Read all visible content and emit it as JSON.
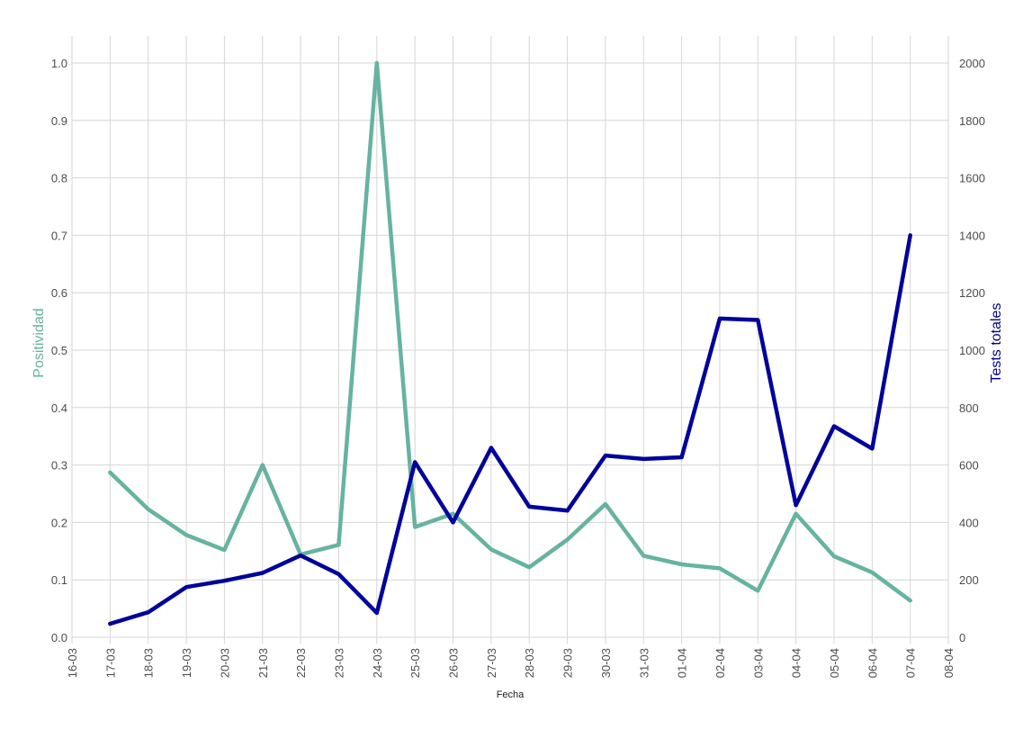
{
  "chart_data": {
    "type": "line",
    "xlabel": "Fecha",
    "y_left_label": "Positividad",
    "y_right_label": "Tests totales",
    "x_ticks": [
      "16-03",
      "17-03",
      "18-03",
      "19-03",
      "20-03",
      "21-03",
      "22-03",
      "23-03",
      "24-03",
      "25-03",
      "26-03",
      "27-03",
      "28-03",
      "29-03",
      "30-03",
      "31-03",
      "01-04",
      "02-04",
      "03-04",
      "04-04",
      "05-04",
      "06-04",
      "07-04",
      "08-04"
    ],
    "y_left_ticks": [
      "0.0",
      "0.1",
      "0.2",
      "0.3",
      "0.4",
      "0.5",
      "0.6",
      "0.7",
      "0.8",
      "0.9",
      "1.0"
    ],
    "y_right_ticks": [
      "0",
      "200",
      "400",
      "600",
      "800",
      "1000",
      "1200",
      "1400",
      "1600",
      "1800",
      "2000"
    ],
    "y_left_lim": [
      0,
      1.0
    ],
    "y_right_lim": [
      0,
      2000
    ],
    "grid": true,
    "colors": {
      "positividad": "#66b3a0",
      "tests": "#00009a",
      "left_axis_title": "#66b3a0",
      "right_axis_title": "#00008b"
    },
    "series": [
      {
        "name": "Positividad",
        "axis": "left",
        "x": [
          "17-03",
          "18-03",
          "19-03",
          "20-03",
          "21-03",
          "22-03",
          "23-03",
          "24-03",
          "25-03",
          "26-03",
          "27-03",
          "28-03",
          "29-03",
          "30-03",
          "31-03",
          "01-04",
          "02-04",
          "03-04",
          "04-04",
          "05-04",
          "06-04",
          "07-04"
        ],
        "values": [
          0.287,
          0.223,
          0.178,
          0.152,
          0.3,
          0.144,
          0.161,
          1.0,
          0.192,
          0.215,
          0.153,
          0.122,
          0.17,
          0.232,
          0.142,
          0.127,
          0.12,
          0.081,
          0.215,
          0.141,
          0.113,
          0.064
        ]
      },
      {
        "name": "Tests totales",
        "axis": "right",
        "x": [
          "17-03",
          "18-03",
          "19-03",
          "20-03",
          "21-03",
          "22-03",
          "23-03",
          "24-03",
          "25-03",
          "26-03",
          "27-03",
          "28-03",
          "29-03",
          "30-03",
          "31-03",
          "01-04",
          "02-04",
          "03-04",
          "04-04",
          "05-04",
          "06-04",
          "07-04"
        ],
        "values": [
          47,
          87,
          175,
          197,
          224,
          285,
          220,
          85,
          610,
          400,
          660,
          455,
          441,
          633,
          621,
          627,
          1110,
          1105,
          460,
          735,
          657,
          1400
        ]
      }
    ]
  }
}
